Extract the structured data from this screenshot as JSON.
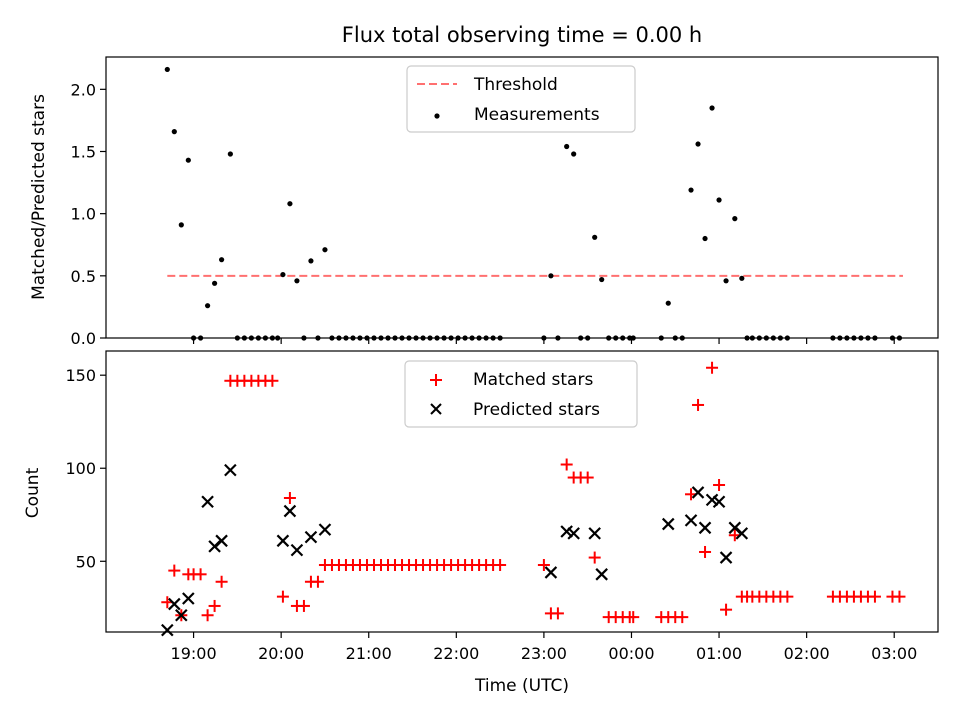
{
  "chart_data": [
    {
      "type": "scatter",
      "title": "Flux total observing time = 0.00 h",
      "ylabel": "Matched/Predicted stars",
      "ylim": [
        0,
        2.26
      ],
      "yticks": [
        "0.0",
        "0.5",
        "1.0",
        "1.5",
        "2.0"
      ],
      "ytick_values": [
        0,
        0.5,
        1.0,
        1.5,
        2.0
      ],
      "legend_placement": "upper center",
      "threshold": {
        "name": "Threshold",
        "y": 0.5,
        "x_start": 18.7,
        "x_end": 27.1,
        "color": "#ff7070",
        "style": "dashed"
      },
      "series": [
        {
          "name": "Measurements",
          "color": "#000000",
          "marker": "dot",
          "x": [
            18.7,
            18.78,
            18.86,
            18.94,
            19.0,
            19.08,
            19.16,
            19.24,
            19.32,
            19.42,
            19.5,
            19.58,
            19.66,
            19.74,
            19.82,
            19.9,
            19.96,
            20.02,
            20.1,
            20.18,
            20.26,
            20.34,
            20.42,
            20.5,
            20.58,
            20.66,
            20.74,
            20.82,
            20.9,
            20.98,
            21.06,
            21.14,
            21.22,
            21.3,
            21.38,
            21.46,
            21.54,
            21.62,
            21.7,
            21.78,
            21.86,
            21.94,
            22.02,
            22.1,
            22.18,
            22.26,
            22.34,
            22.42,
            22.5,
            23.0,
            23.08,
            23.16,
            23.26,
            23.34,
            23.42,
            23.5,
            23.58,
            23.66,
            23.74,
            23.82,
            23.9,
            23.98,
            24.02,
            24.34,
            24.42,
            24.5,
            24.58,
            24.68,
            24.76,
            24.84,
            24.92,
            25.0,
            25.08,
            25.18,
            25.26,
            25.32,
            25.38,
            25.46,
            25.54,
            25.62,
            25.7,
            25.78,
            26.3,
            26.38,
            26.46,
            26.54,
            26.62,
            26.7,
            26.78,
            26.98,
            27.06
          ],
          "y": [
            2.16,
            1.66,
            0.91,
            1.43,
            0.0,
            0.0,
            0.26,
            0.44,
            0.63,
            1.48,
            0.0,
            0.0,
            0.0,
            0.0,
            0.0,
            0.0,
            0.0,
            0.51,
            1.08,
            0.46,
            0.0,
            0.62,
            0.0,
            0.71,
            0.0,
            0.0,
            0.0,
            0.0,
            0.0,
            0.0,
            0.0,
            0.0,
            0.0,
            0.0,
            0.0,
            0.0,
            0.0,
            0.0,
            0.0,
            0.0,
            0.0,
            0.0,
            0.0,
            0.0,
            0.0,
            0.0,
            0.0,
            0.0,
            0.0,
            0.0,
            0.5,
            0.0,
            1.54,
            1.48,
            0.0,
            0.0,
            0.81,
            0.47,
            0.0,
            0.0,
            0.0,
            0.0,
            0.0,
            0.0,
            0.28,
            0.0,
            0.0,
            1.19,
            1.56,
            0.8,
            1.85,
            1.11,
            0.46,
            0.96,
            0.48,
            0.0,
            0.0,
            0.0,
            0.0,
            0.0,
            0.0,
            0.0,
            0.0,
            0.0,
            0.0,
            0.0,
            0.0,
            0.0,
            0.0,
            0.0,
            0.0
          ]
        }
      ]
    },
    {
      "type": "scatter",
      "xlabel": "Time (UTC)",
      "ylabel": "Count",
      "ylim": [
        12,
        163
      ],
      "yticks": [
        "50",
        "100",
        "150"
      ],
      "ytick_values": [
        50,
        100,
        150
      ],
      "xlim": [
        18.0,
        27.5
      ],
      "xticks": [
        "19:00",
        "20:00",
        "21:00",
        "22:00",
        "23:00",
        "00:00",
        "01:00",
        "02:00",
        "03:00"
      ],
      "xtick_values": [
        19,
        20,
        21,
        22,
        23,
        24,
        25,
        26,
        27
      ],
      "legend_placement": "upper center",
      "series": [
        {
          "name": "Matched stars",
          "color": "#ff0000",
          "marker": "plus",
          "x": [
            18.7,
            18.78,
            18.86,
            18.94,
            19.0,
            19.08,
            19.16,
            19.24,
            19.32,
            19.42,
            19.5,
            19.58,
            19.66,
            19.74,
            19.82,
            19.9,
            20.02,
            20.1,
            20.18,
            20.26,
            20.34,
            20.42,
            20.5,
            20.58,
            20.66,
            20.74,
            20.82,
            20.9,
            20.98,
            21.06,
            21.14,
            21.22,
            21.3,
            21.38,
            21.46,
            21.54,
            21.62,
            21.7,
            21.78,
            21.86,
            21.94,
            22.02,
            22.1,
            22.18,
            22.26,
            22.34,
            22.42,
            22.5,
            23.0,
            23.08,
            23.16,
            23.26,
            23.34,
            23.42,
            23.5,
            23.58,
            23.74,
            23.82,
            23.9,
            23.98,
            24.02,
            24.34,
            24.42,
            24.5,
            24.58,
            24.68,
            24.76,
            24.84,
            24.92,
            25.0,
            25.08,
            25.18,
            25.26,
            25.32,
            25.38,
            25.46,
            25.54,
            25.62,
            25.7,
            25.78,
            26.3,
            26.38,
            26.46,
            26.54,
            26.62,
            26.7,
            26.78,
            26.98,
            27.06
          ],
          "y": [
            28,
            45,
            21,
            43,
            43,
            43,
            21,
            26,
            39,
            147,
            147,
            147,
            147,
            147,
            147,
            147,
            31,
            84,
            26,
            26,
            39,
            39,
            48,
            48,
            48,
            48,
            48,
            48,
            48,
            48,
            48,
            48,
            48,
            48,
            48,
            48,
            48,
            48,
            48,
            48,
            48,
            48,
            48,
            48,
            48,
            48,
            48,
            48,
            48,
            22,
            22,
            102,
            95,
            95,
            95,
            52,
            20,
            20,
            20,
            20,
            20,
            20,
            20,
            20,
            20,
            86,
            134,
            55,
            154,
            91,
            24,
            64,
            31,
            31,
            31,
            31,
            31,
            31,
            31,
            31,
            31,
            31,
            31,
            31,
            31,
            31,
            31,
            31,
            31
          ]
        },
        {
          "name": "Predicted stars",
          "color": "#000000",
          "marker": "x",
          "x": [
            18.7,
            18.78,
            18.86,
            18.94,
            19.16,
            19.24,
            19.32,
            19.42,
            20.02,
            20.1,
            20.18,
            20.34,
            20.5,
            23.08,
            23.26,
            23.34,
            23.58,
            23.66,
            24.42,
            24.68,
            24.76,
            24.84,
            24.92,
            25.0,
            25.08,
            25.18,
            25.26
          ],
          "y": [
            13,
            27,
            21,
            30,
            82,
            58,
            61,
            99,
            61,
            77,
            56,
            63,
            67,
            44,
            66,
            65,
            65,
            43,
            70,
            72,
            87,
            68,
            83,
            82,
            52,
            68,
            65
          ]
        }
      ]
    }
  ]
}
